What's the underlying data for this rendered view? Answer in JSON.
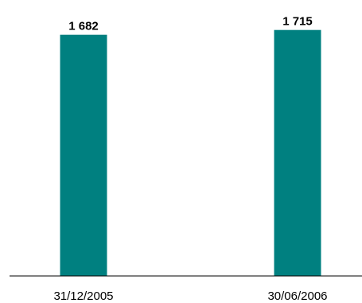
{
  "chart_data": {
    "type": "bar",
    "categories": [
      "31/12/2005",
      "30/06/2006"
    ],
    "values": [
      1682,
      1715
    ],
    "value_labels": [
      "1 682",
      "1 715"
    ],
    "title": "",
    "xlabel": "",
    "ylabel": "",
    "ylim": [
      0,
      1780
    ],
    "grid": false,
    "legend": "none",
    "colors": {
      "bar": "#008080",
      "axis": "#000000"
    }
  }
}
